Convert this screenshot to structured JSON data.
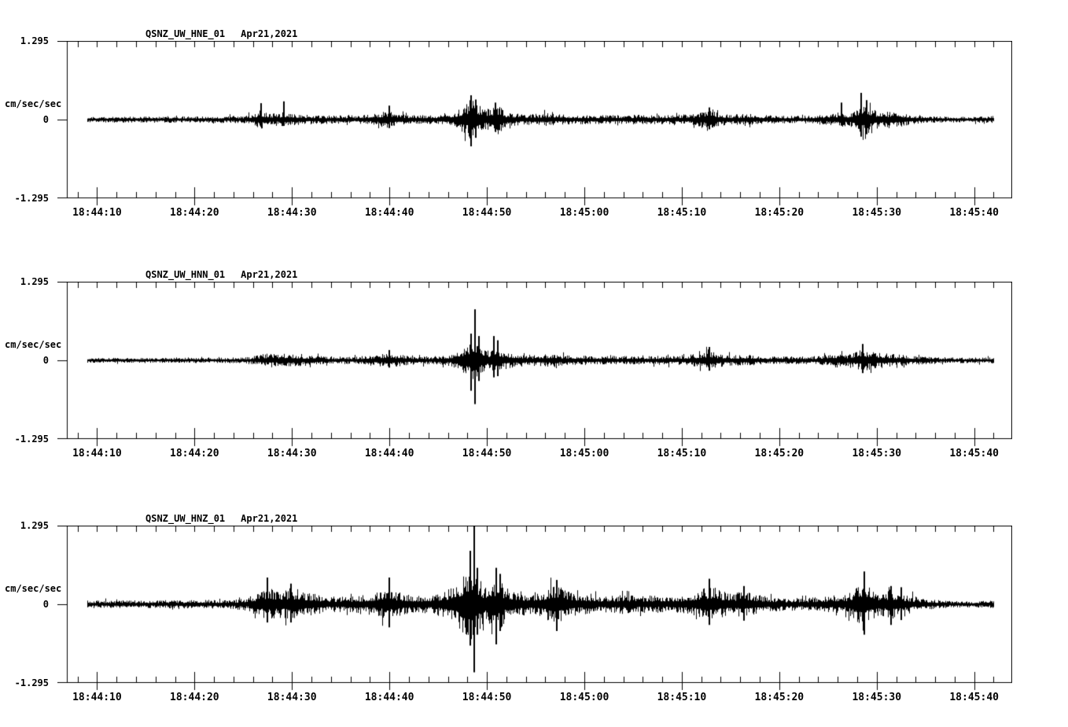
{
  "page": {
    "background": "#ffffff",
    "ink": "#000000"
  },
  "chart_data": [
    {
      "type": "line",
      "kind": "seismogram-trace",
      "station": "QSNZ_UW_HNE_01",
      "date": "Apr21,2021",
      "ylabel": "cm/sec/sec",
      "yticks": [
        "1.295",
        "0",
        "-1.295"
      ],
      "ylim": [
        -1.295,
        1.295
      ],
      "xticks": [
        "18:44:10",
        "18:44:20",
        "18:44:30",
        "18:44:40",
        "18:44:50",
        "18:45:00",
        "18:45:10",
        "18:45:20",
        "18:45:30",
        "18:45:40"
      ],
      "xtick_seconds": [
        10,
        20,
        30,
        40,
        50,
        60,
        70,
        80,
        90,
        100
      ],
      "minor_tick_interval_seconds": 2,
      "t_reference": "seconds after 18:44:00",
      "x_window_seconds": [
        6.9,
        103.9
      ],
      "trace_span_seconds": [
        9.0,
        102.0
      ],
      "grid": false,
      "envelope": [
        [
          9,
          0.05
        ],
        [
          14,
          0.05
        ],
        [
          20,
          0.055
        ],
        [
          25,
          0.06
        ],
        [
          26,
          0.1
        ],
        [
          26.8,
          0.16
        ],
        [
          27.6,
          0.11
        ],
        [
          28.6,
          0.1
        ],
        [
          29.2,
          0.13
        ],
        [
          30.2,
          0.1
        ],
        [
          31.5,
          0.08
        ],
        [
          34,
          0.07
        ],
        [
          37,
          0.07
        ],
        [
          38.6,
          0.1
        ],
        [
          39.8,
          0.15
        ],
        [
          40.6,
          0.11
        ],
        [
          42,
          0.08
        ],
        [
          44,
          0.07
        ],
        [
          45.5,
          0.09
        ],
        [
          46.6,
          0.13
        ],
        [
          47.6,
          0.22
        ],
        [
          48.4,
          0.36
        ],
        [
          49.1,
          0.28
        ],
        [
          49.8,
          0.16
        ],
        [
          50.4,
          0.22
        ],
        [
          51.1,
          0.25
        ],
        [
          51.9,
          0.13
        ],
        [
          53,
          0.1
        ],
        [
          54.5,
          0.09
        ],
        [
          56,
          0.11
        ],
        [
          57,
          0.09
        ],
        [
          59,
          0.08
        ],
        [
          62,
          0.075
        ],
        [
          65,
          0.08
        ],
        [
          68,
          0.075
        ],
        [
          71,
          0.09
        ],
        [
          72.3,
          0.15
        ],
        [
          73.2,
          0.17
        ],
        [
          74,
          0.1
        ],
        [
          75.2,
          0.08
        ],
        [
          76.5,
          0.11
        ],
        [
          77.5,
          0.08
        ],
        [
          80,
          0.065
        ],
        [
          83,
          0.065
        ],
        [
          85.3,
          0.09
        ],
        [
          86.3,
          0.13
        ],
        [
          87.2,
          0.11
        ],
        [
          88,
          0.22
        ],
        [
          88.7,
          0.3
        ],
        [
          89.5,
          0.18
        ],
        [
          90.5,
          0.12
        ],
        [
          91.5,
          0.14
        ],
        [
          92.5,
          0.12
        ],
        [
          93.5,
          0.08
        ],
        [
          95,
          0.055
        ],
        [
          97,
          0.05
        ],
        [
          99.5,
          0.045
        ],
        [
          101.6,
          0.06
        ]
      ],
      "spikes": [
        [
          26.8,
          0.27,
          -0.12
        ],
        [
          29.2,
          0.3,
          -0.1
        ],
        [
          40,
          0.23,
          -0.14
        ],
        [
          48.4,
          0.4,
          -0.44
        ],
        [
          48.9,
          0.33,
          -0.3
        ],
        [
          50.9,
          0.28,
          -0.2
        ],
        [
          72.8,
          0.2,
          -0.16
        ],
        [
          86.4,
          0.28,
          -0.1
        ],
        [
          88.4,
          0.44,
          -0.28
        ],
        [
          89,
          0.32,
          -0.24
        ]
      ]
    },
    {
      "type": "line",
      "kind": "seismogram-trace",
      "station": "QSNZ_UW_HNN_01",
      "date": "Apr21,2021",
      "ylabel": "cm/sec/sec",
      "yticks": [
        "1.295",
        "0",
        "-1.295"
      ],
      "ylim": [
        -1.295,
        1.295
      ],
      "xticks": [
        "18:44:10",
        "18:44:20",
        "18:44:30",
        "18:44:40",
        "18:44:50",
        "18:45:00",
        "18:45:10",
        "18:45:20",
        "18:45:30",
        "18:45:40"
      ],
      "xtick_seconds": [
        10,
        20,
        30,
        40,
        50,
        60,
        70,
        80,
        90,
        100
      ],
      "minor_tick_interval_seconds": 2,
      "t_reference": "seconds after 18:44:00",
      "x_window_seconds": [
        6.9,
        103.9
      ],
      "trace_span_seconds": [
        9.0,
        102.0
      ],
      "grid": false,
      "envelope": [
        [
          9,
          0.04
        ],
        [
          15,
          0.04
        ],
        [
          22,
          0.045
        ],
        [
          25.5,
          0.05
        ],
        [
          26.6,
          0.09
        ],
        [
          27.6,
          0.12
        ],
        [
          28.6,
          0.1
        ],
        [
          29.6,
          0.12
        ],
        [
          30.6,
          0.1
        ],
        [
          32,
          0.08
        ],
        [
          34.5,
          0.06
        ],
        [
          37,
          0.065
        ],
        [
          38.8,
          0.09
        ],
        [
          39.8,
          0.13
        ],
        [
          40.8,
          0.1
        ],
        [
          42.2,
          0.075
        ],
        [
          44,
          0.065
        ],
        [
          45.6,
          0.08
        ],
        [
          46.8,
          0.13
        ],
        [
          47.8,
          0.28
        ],
        [
          48.8,
          0.45
        ],
        [
          49.5,
          0.24
        ],
        [
          50.2,
          0.18
        ],
        [
          50.9,
          0.24
        ],
        [
          51.7,
          0.15
        ],
        [
          52.8,
          0.12
        ],
        [
          54.2,
          0.09
        ],
        [
          55.8,
          0.1
        ],
        [
          56.8,
          0.12
        ],
        [
          58,
          0.085
        ],
        [
          60.5,
          0.075
        ],
        [
          63.5,
          0.07
        ],
        [
          66.5,
          0.07
        ],
        [
          69.5,
          0.08
        ],
        [
          71.6,
          0.11
        ],
        [
          72.8,
          0.17
        ],
        [
          73.8,
          0.11
        ],
        [
          75.2,
          0.085
        ],
        [
          76.6,
          0.1
        ],
        [
          78,
          0.07
        ],
        [
          81,
          0.065
        ],
        [
          84,
          0.07
        ],
        [
          85.8,
          0.12
        ],
        [
          86.8,
          0.1
        ],
        [
          87.8,
          0.15
        ],
        [
          88.7,
          0.2
        ],
        [
          89.6,
          0.14
        ],
        [
          90.8,
          0.12
        ],
        [
          92.2,
          0.1
        ],
        [
          94,
          0.075
        ],
        [
          96.5,
          0.055
        ],
        [
          99,
          0.045
        ],
        [
          101.6,
          0.05
        ]
      ],
      "spikes": [
        [
          40,
          0.17,
          -0.12
        ],
        [
          48.4,
          0.44,
          -0.5
        ],
        [
          48.75,
          0.84,
          -0.72
        ],
        [
          49.15,
          0.4,
          -0.34
        ],
        [
          50.7,
          0.4,
          -0.28
        ],
        [
          51.1,
          0.33,
          -0.26
        ],
        [
          72.8,
          0.22,
          -0.17
        ],
        [
          88.6,
          0.27,
          -0.21
        ]
      ]
    },
    {
      "type": "line",
      "kind": "seismogram-trace",
      "station": "QSNZ_UW_HNZ_01",
      "date": "Apr21,2021",
      "ylabel": "cm/sec/sec",
      "yticks": [
        "1.295",
        "0",
        "-1.295"
      ],
      "ylim": [
        -1.295,
        1.295
      ],
      "xticks": [
        "18:44:10",
        "18:44:20",
        "18:44:30",
        "18:44:40",
        "18:44:50",
        "18:45:00",
        "18:45:10",
        "18:45:20",
        "18:45:30",
        "18:45:40"
      ],
      "xtick_seconds": [
        10,
        20,
        30,
        40,
        50,
        60,
        70,
        80,
        90,
        100
      ],
      "minor_tick_interval_seconds": 2,
      "t_reference": "seconds after 18:44:00",
      "x_window_seconds": [
        6.9,
        103.9
      ],
      "trace_span_seconds": [
        9.0,
        102.0
      ],
      "grid": false,
      "envelope": [
        [
          9,
          0.065
        ],
        [
          14,
          0.065
        ],
        [
          20,
          0.07
        ],
        [
          24,
          0.08
        ],
        [
          25.6,
          0.12
        ],
        [
          26.6,
          0.2
        ],
        [
          27.5,
          0.28
        ],
        [
          28.3,
          0.22
        ],
        [
          29.1,
          0.24
        ],
        [
          29.9,
          0.27
        ],
        [
          30.8,
          0.24
        ],
        [
          31.8,
          0.19
        ],
        [
          33,
          0.15
        ],
        [
          34.5,
          0.13
        ],
        [
          36.2,
          0.13
        ],
        [
          37.6,
          0.16
        ],
        [
          38.8,
          0.21
        ],
        [
          39.8,
          0.28
        ],
        [
          40.7,
          0.21
        ],
        [
          41.8,
          0.16
        ],
        [
          43.2,
          0.14
        ],
        [
          44.6,
          0.17
        ],
        [
          45.6,
          0.22
        ],
        [
          46.6,
          0.3
        ],
        [
          47.6,
          0.5
        ],
        [
          48.5,
          0.75
        ],
        [
          49.1,
          0.5
        ],
        [
          49.7,
          0.3
        ],
        [
          50.4,
          0.36
        ],
        [
          51.1,
          0.48
        ],
        [
          51.8,
          0.3
        ],
        [
          52.8,
          0.22
        ],
        [
          54.2,
          0.18
        ],
        [
          55.6,
          0.21
        ],
        [
          56.6,
          0.3
        ],
        [
          57.3,
          0.36
        ],
        [
          58.2,
          0.24
        ],
        [
          59.3,
          0.18
        ],
        [
          60.8,
          0.15
        ],
        [
          62.3,
          0.14
        ],
        [
          63.8,
          0.16
        ],
        [
          65.3,
          0.14
        ],
        [
          66.8,
          0.15
        ],
        [
          68.3,
          0.13
        ],
        [
          69.8,
          0.15
        ],
        [
          71.2,
          0.19
        ],
        [
          72.4,
          0.28
        ],
        [
          73.1,
          0.3
        ],
        [
          74,
          0.22
        ],
        [
          75.2,
          0.18
        ],
        [
          76.4,
          0.22
        ],
        [
          77.4,
          0.17
        ],
        [
          78.8,
          0.13
        ],
        [
          80.5,
          0.11
        ],
        [
          82.5,
          0.105
        ],
        [
          84.3,
          0.12
        ],
        [
          85.6,
          0.15
        ],
        [
          86.6,
          0.14
        ],
        [
          87.6,
          0.26
        ],
        [
          88.6,
          0.4
        ],
        [
          89.4,
          0.28
        ],
        [
          90.4,
          0.2
        ],
        [
          91.4,
          0.26
        ],
        [
          92.4,
          0.21
        ],
        [
          93.4,
          0.15
        ],
        [
          94.8,
          0.1
        ],
        [
          96.5,
          0.065
        ],
        [
          98.5,
          0.055
        ],
        [
          100.5,
          0.05
        ],
        [
          101.6,
          0.065
        ]
      ],
      "spikes": [
        [
          27.5,
          0.44,
          -0.3
        ],
        [
          29.9,
          0.34,
          -0.3
        ],
        [
          40,
          0.44,
          -0.38
        ],
        [
          48.3,
          0.88,
          -0.68
        ],
        [
          48.7,
          1.295,
          -1.12
        ],
        [
          49.05,
          0.6,
          -0.5
        ],
        [
          51,
          0.6,
          -0.66
        ],
        [
          51.4,
          0.5,
          -0.44
        ],
        [
          57.2,
          0.4,
          -0.44
        ],
        [
          72.8,
          0.42,
          -0.34
        ],
        [
          76.4,
          0.3,
          -0.27
        ],
        [
          88.7,
          0.54,
          -0.5
        ],
        [
          91.5,
          0.3,
          -0.34
        ],
        [
          92.5,
          0.28,
          -0.26
        ]
      ]
    }
  ]
}
